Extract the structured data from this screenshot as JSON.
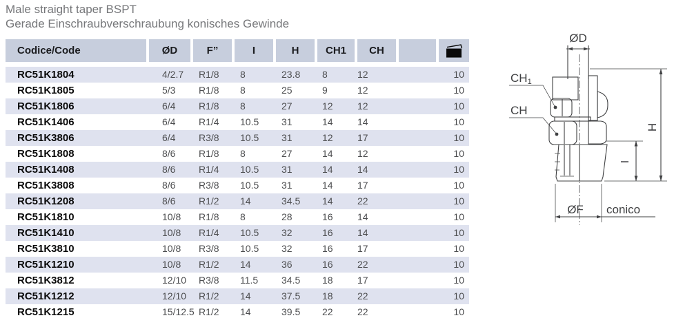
{
  "page": {
    "title_en": "Male straight taper BSPT",
    "title_de": "Gerade Einschraubverschraubung konisches Gewinde"
  },
  "colors": {
    "header_bg": "#c7cedd",
    "stripe_bg": "#dfe2ef",
    "title_text": "#76777a",
    "header_text": "#1a1b1e",
    "code_text": "#0a0a0a",
    "data_text": "#4d4e50",
    "line": "#3f4042"
  },
  "table": {
    "headers": {
      "code": "Codice/Code",
      "od": "ØD",
      "f": "F”",
      "i": "I",
      "h": "H",
      "ch1": "CH1",
      "ch": "CH",
      "spare": "",
      "pack_icon": "package-icon"
    },
    "rows": [
      {
        "code": "RC51K1804",
        "od": "4/2.7",
        "f": "R1/8",
        "i": "8",
        "h": "23.8",
        "ch1": "8",
        "ch": "12",
        "qty": "10"
      },
      {
        "code": "RC51K1805",
        "od": "5/3",
        "f": "R1/8",
        "i": "8",
        "h": "25",
        "ch1": "9",
        "ch": "12",
        "qty": "10"
      },
      {
        "code": "RC51K1806",
        "od": "6/4",
        "f": "R1/8",
        "i": "8",
        "h": "27",
        "ch1": "12",
        "ch": "12",
        "qty": "10"
      },
      {
        "code": "RC51K1406",
        "od": "6/4",
        "f": "R1/4",
        "i": "10.5",
        "h": "31",
        "ch1": "14",
        "ch": "14",
        "qty": "10"
      },
      {
        "code": "RC51K3806",
        "od": "6/4",
        "f": "R3/8",
        "i": "10.5",
        "h": "31",
        "ch1": "12",
        "ch": "17",
        "qty": "10"
      },
      {
        "code": "RC51K1808",
        "od": "8/6",
        "f": "R1/8",
        "i": "8",
        "h": "27",
        "ch1": "14",
        "ch": "12",
        "qty": "10"
      },
      {
        "code": "RC51K1408",
        "od": "8/6",
        "f": "R1/4",
        "i": "10.5",
        "h": "31",
        "ch1": "14",
        "ch": "14",
        "qty": "10"
      },
      {
        "code": "RC51K3808",
        "od": "8/6",
        "f": "R3/8",
        "i": "10.5",
        "h": "31",
        "ch1": "14",
        "ch": "17",
        "qty": "10"
      },
      {
        "code": "RC51K1208",
        "od": "8/6",
        "f": "R1/2",
        "i": "14",
        "h": "34.5",
        "ch1": "14",
        "ch": "22",
        "qty": "10"
      },
      {
        "code": "RC51K1810",
        "od": "10/8",
        "f": "R1/8",
        "i": "8",
        "h": "28",
        "ch1": "16",
        "ch": "14",
        "qty": "10"
      },
      {
        "code": "RC51K1410",
        "od": "10/8",
        "f": "R1/4",
        "i": "10.5",
        "h": "32",
        "ch1": "16",
        "ch": "14",
        "qty": "10"
      },
      {
        "code": "RC51K3810",
        "od": "10/8",
        "f": "R3/8",
        "i": "10.5",
        "h": "32",
        "ch1": "16",
        "ch": "17",
        "qty": "10"
      },
      {
        "code": "RC51K1210",
        "od": "10/8",
        "f": "R1/2",
        "i": "14",
        "h": "36",
        "ch1": "16",
        "ch": "22",
        "qty": "10"
      },
      {
        "code": "RC51K3812",
        "od": "12/10",
        "f": "R3/8",
        "i": "11.5",
        "h": "34.5",
        "ch1": "18",
        "ch": "17",
        "qty": "10"
      },
      {
        "code": "RC51K1212",
        "od": "12/10",
        "f": "R1/2",
        "i": "14",
        "h": "37.5",
        "ch1": "18",
        "ch": "22",
        "qty": "10"
      },
      {
        "code": "RC51K1215",
        "od": "15/12.5",
        "f": "R1/2",
        "i": "14",
        "h": "39.5",
        "ch1": "22",
        "ch": "22",
        "qty": "10"
      }
    ]
  },
  "drawing": {
    "labels": {
      "od": "ØD",
      "ch1_main": "CH",
      "ch1_sub": "1",
      "ch": "CH",
      "h": "H",
      "i": "I",
      "of": "ØF",
      "conico": "conico"
    }
  }
}
